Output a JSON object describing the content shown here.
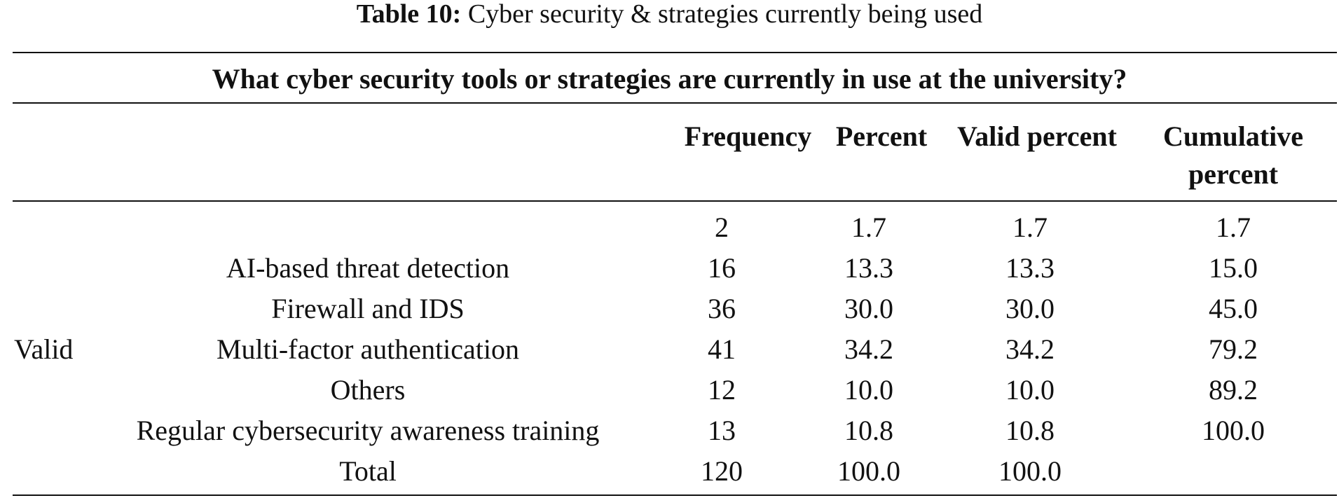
{
  "caption": {
    "label": "Table 10:",
    "text": "Cyber security & strategies currently being used"
  },
  "question": "What cyber security tools or strategies are currently in use at the university?",
  "columns": {
    "frequency": "Frequency",
    "percent": "Percent",
    "valid_percent": "Valid percent",
    "cumulative_line1": "Cumulative",
    "cumulative_line2": "percent"
  },
  "stub_label": "Valid",
  "rows": [
    {
      "label": "",
      "frequency": "2",
      "percent": "1.7",
      "valid_percent": "1.7",
      "cumulative": "1.7"
    },
    {
      "label": "AI-based threat detection",
      "frequency": "16",
      "percent": "13.3",
      "valid_percent": "13.3",
      "cumulative": "15.0"
    },
    {
      "label": "Firewall and IDS",
      "frequency": "36",
      "percent": "30.0",
      "valid_percent": "30.0",
      "cumulative": "45.0"
    },
    {
      "label": "Multi-factor authentication",
      "frequency": "41",
      "percent": "34.2",
      "valid_percent": "34.2",
      "cumulative": "79.2"
    },
    {
      "label": "Others",
      "frequency": "12",
      "percent": "10.0",
      "valid_percent": "10.0",
      "cumulative": "89.2"
    },
    {
      "label": "Regular cybersecurity awareness training",
      "frequency": "13",
      "percent": "10.8",
      "valid_percent": "10.8",
      "cumulative": "100.0"
    },
    {
      "label": "Total",
      "frequency": "120",
      "percent": "100.0",
      "valid_percent": "100.0",
      "cumulative": ""
    }
  ]
}
